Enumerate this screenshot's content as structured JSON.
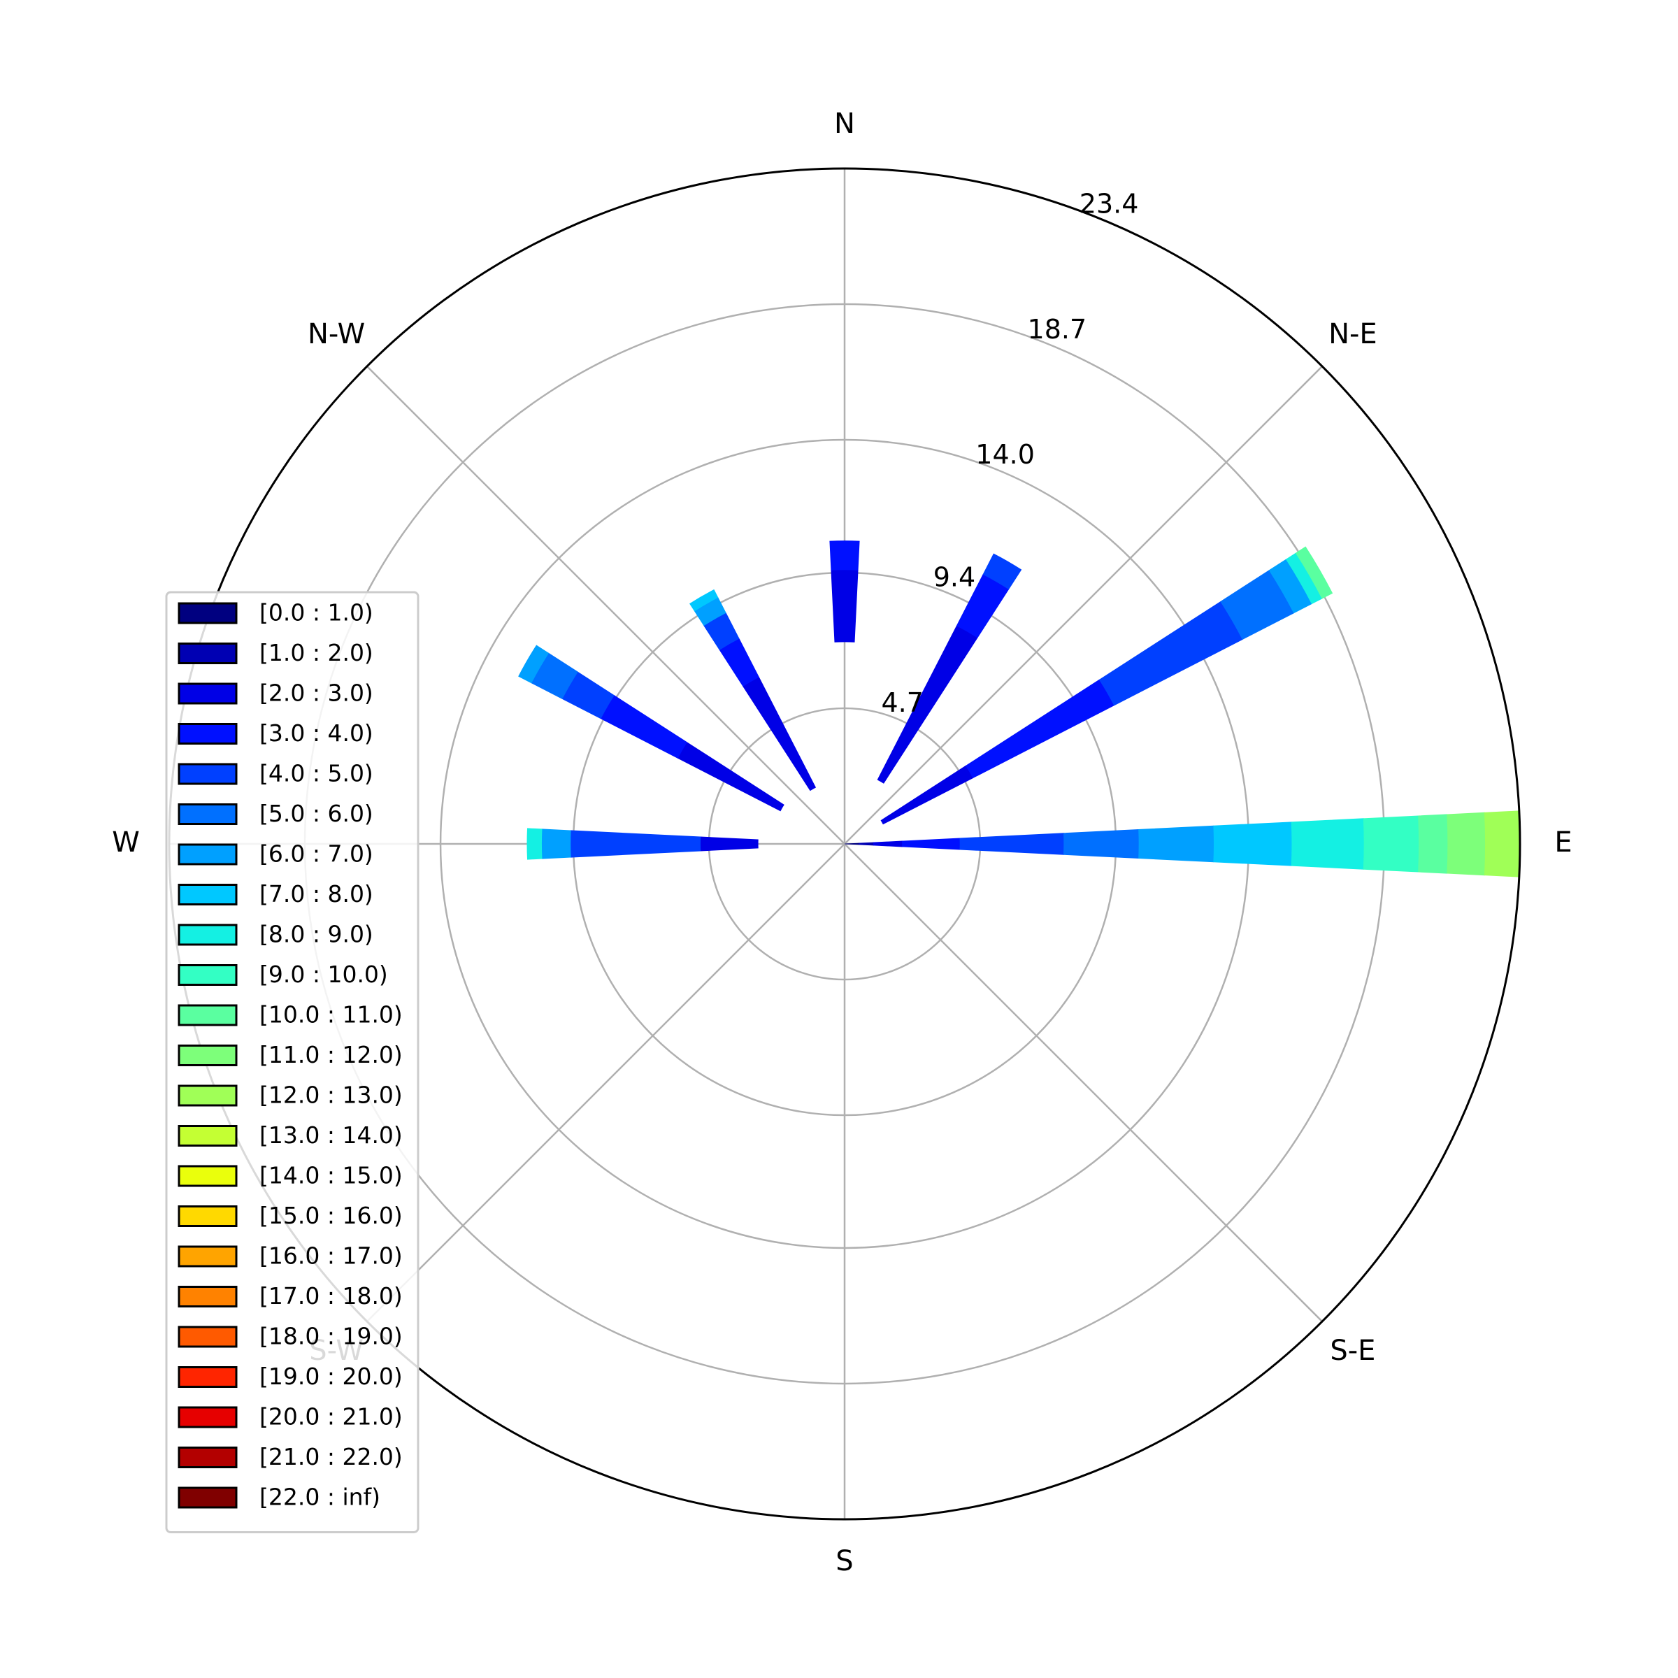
{
  "chart_data": {
    "type": "windrose",
    "directions": [
      "E",
      "N-E",
      "N",
      "N-W",
      "W",
      "S-W",
      "S",
      "S-E"
    ],
    "radial_ticks": [
      "4.7",
      "9.4",
      "14.0",
      "18.7",
      "23.4"
    ],
    "radial_tick_values": [
      4.7,
      9.4,
      14.0,
      18.7,
      23.4
    ],
    "rmax": 23.4,
    "grid": true,
    "legend_position": "left",
    "legend": [
      {
        "label": "[0.0 : 1.0)",
        "color": "#000080"
      },
      {
        "label": "[1.0 : 2.0)",
        "color": "#0000b3"
      },
      {
        "label": "[2.0 : 3.0)",
        "color": "#0000e6"
      },
      {
        "label": "[3.0 : 4.0)",
        "color": "#0010ff"
      },
      {
        "label": "[4.0 : 5.0)",
        "color": "#0040ff"
      },
      {
        "label": "[5.0 : 6.0)",
        "color": "#0070ff"
      },
      {
        "label": "[6.0 : 7.0)",
        "color": "#00a0ff"
      },
      {
        "label": "[7.0 : 8.0)",
        "color": "#00c8ff"
      },
      {
        "label": "[8.0 : 9.0)",
        "color": "#14f0e3"
      },
      {
        "label": "[9.0 : 10.0)",
        "color": "#33ffc4"
      },
      {
        "label": "[10.0 : 11.0)",
        "color": "#5affa0"
      },
      {
        "label": "[11.0 : 12.0)",
        "color": "#7dff7a"
      },
      {
        "label": "[12.0 : 13.0)",
        "color": "#a0ff57"
      },
      {
        "label": "[13.0 : 14.0)",
        "color": "#c4ff33"
      },
      {
        "label": "[14.0 : 15.0)",
        "color": "#eaff0c"
      },
      {
        "label": "[15.0 : 16.0)",
        "color": "#ffd900"
      },
      {
        "label": "[16.0 : 17.0)",
        "color": "#ffa400"
      },
      {
        "label": "[17.0 : 18.0)",
        "color": "#ff8200"
      },
      {
        "label": "[18.0 : 19.0)",
        "color": "#ff5a00"
      },
      {
        "label": "[19.0 : 20.0)",
        "color": "#ff2500"
      },
      {
        "label": "[20.0 : 21.0)",
        "color": "#e60000"
      },
      {
        "label": "[21.0 : 22.0)",
        "color": "#b30000"
      },
      {
        "label": "[22.0 : inf)",
        "color": "#800000"
      }
    ],
    "petals": [
      {
        "direction_deg": 0,
        "segments": [
          {
            "bin": 0,
            "r0": 0.0,
            "r1": 0.5
          },
          {
            "bin": 1,
            "r0": 0.5,
            "r1": 1.0
          },
          {
            "bin": 2,
            "r0": 1.0,
            "r1": 2.0
          },
          {
            "bin": 3,
            "r0": 2.0,
            "r1": 4.0
          },
          {
            "bin": 4,
            "r0": 4.0,
            "r1": 7.6
          },
          {
            "bin": 5,
            "r0": 7.6,
            "r1": 10.2
          },
          {
            "bin": 6,
            "r0": 10.2,
            "r1": 12.8
          },
          {
            "bin": 7,
            "r0": 12.8,
            "r1": 15.5
          },
          {
            "bin": 8,
            "r0": 15.5,
            "r1": 18.0
          },
          {
            "bin": 9,
            "r0": 18.0,
            "r1": 19.9
          },
          {
            "bin": 10,
            "r0": 19.9,
            "r1": 20.9
          },
          {
            "bin": 11,
            "r0": 20.9,
            "r1": 22.2
          },
          {
            "bin": 12,
            "r0": 22.2,
            "r1": 23.4
          }
        ]
      },
      {
        "direction_deg": 30,
        "segments": [
          {
            "bin": 2,
            "r0": 1.5,
            "r1": 5.0
          },
          {
            "bin": 3,
            "r0": 5.0,
            "r1": 10.5
          },
          {
            "bin": 4,
            "r0": 10.5,
            "r1": 15.5
          },
          {
            "bin": 5,
            "r0": 15.5,
            "r1": 17.5
          },
          {
            "bin": 6,
            "r0": 17.5,
            "r1": 18.2
          },
          {
            "bin": 8,
            "r0": 18.2,
            "r1": 18.6
          },
          {
            "bin": 10,
            "r0": 18.6,
            "r1": 19.0
          }
        ]
      },
      {
        "direction_deg": 60,
        "segments": [
          {
            "bin": 2,
            "r0": 2.5,
            "r1": 8.5
          },
          {
            "bin": 3,
            "r0": 8.5,
            "r1": 10.5
          },
          {
            "bin": 4,
            "r0": 10.5,
            "r1": 11.3
          }
        ]
      },
      {
        "direction_deg": 90,
        "segments": [
          {
            "bin": 2,
            "r0": 7.0,
            "r1": 9.5
          },
          {
            "bin": 3,
            "r0": 9.5,
            "r1": 10.5
          }
        ]
      },
      {
        "direction_deg": 120,
        "segments": [
          {
            "bin": 2,
            "r0": 2.2,
            "r1": 6.5
          },
          {
            "bin": 3,
            "r0": 6.5,
            "r1": 8.0
          },
          {
            "bin": 4,
            "r0": 8.0,
            "r1": 9.0
          },
          {
            "bin": 6,
            "r0": 9.0,
            "r1": 9.6
          },
          {
            "bin": 7,
            "r0": 9.6,
            "r1": 9.9
          }
        ]
      },
      {
        "direction_deg": 150,
        "segments": [
          {
            "bin": 2,
            "r0": 2.5,
            "r1": 6.5
          },
          {
            "bin": 3,
            "r0": 6.5,
            "r1": 9.5
          },
          {
            "bin": 4,
            "r0": 9.5,
            "r1": 11.0
          },
          {
            "bin": 5,
            "r0": 11.0,
            "r1": 12.2
          },
          {
            "bin": 6,
            "r0": 12.2,
            "r1": 12.7
          }
        ]
      },
      {
        "direction_deg": 180,
        "segments": [
          {
            "bin": 2,
            "r0": 3.0,
            "r1": 5.0
          },
          {
            "bin": 4,
            "r0": 5.0,
            "r1": 9.5
          },
          {
            "bin": 6,
            "r0": 9.5,
            "r1": 10.5
          },
          {
            "bin": 8,
            "r0": 10.5,
            "r1": 11.0
          }
        ]
      }
    ]
  }
}
